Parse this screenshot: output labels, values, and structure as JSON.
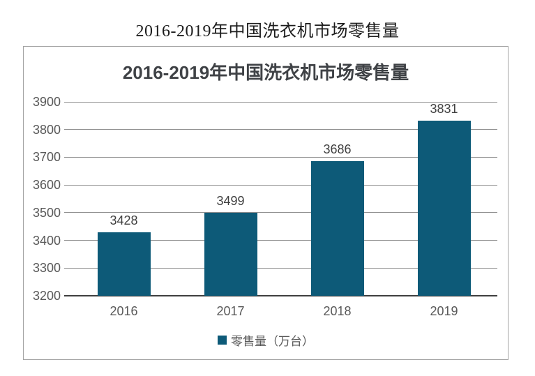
{
  "page": {
    "outer_title": "2016-2019年中国洗衣机市场零售量"
  },
  "chart": {
    "legend_label": "零售量（万台）",
    "colors": {
      "bar": "#0d5a78",
      "gridline": "#8f8f8f",
      "axis_line": "#3f3f3f",
      "tick_label": "#595959",
      "data_label": "#404040",
      "title": "#3f4246",
      "border": "#a3a3a3"
    }
  },
  "chart_data": {
    "type": "bar",
    "title": "2016-2019年中国洗衣机市场零售量",
    "categories": [
      "2016",
      "2017",
      "2018",
      "2019"
    ],
    "values": [
      3428,
      3499,
      3686,
      3831
    ],
    "series_name": "零售量（万台）",
    "ylabel": "",
    "xlabel": "",
    "ylim": [
      3200,
      3900
    ],
    "ytick_step": 100,
    "yticks": [
      3200,
      3300,
      3400,
      3500,
      3600,
      3700,
      3800,
      3900
    ],
    "grid": true,
    "data_labels": true,
    "legend_position": "bottom"
  }
}
